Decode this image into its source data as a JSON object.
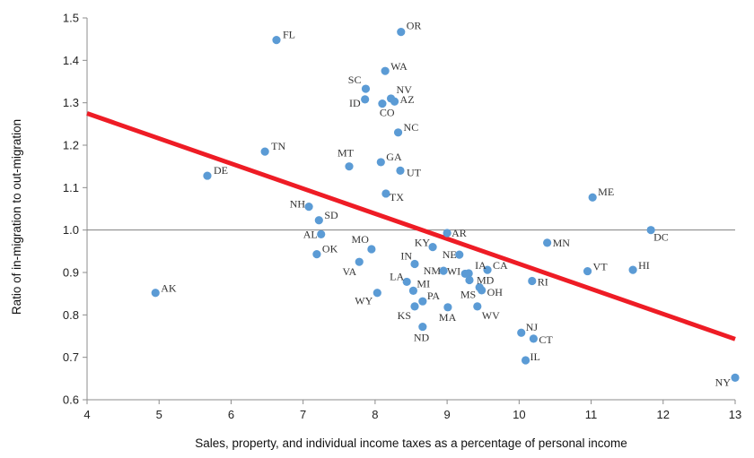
{
  "chart_data": {
    "type": "scatter",
    "xlabel": "Sales, property, and individual income taxes as a percentage of personal income",
    "ylabel": "Ratio of in-migration to out-migration",
    "xlim": [
      4,
      13
    ],
    "ylim": [
      0.6,
      1.5
    ],
    "x_ticks": [
      "4",
      "5",
      "6",
      "7",
      "8",
      "9",
      "10",
      "11",
      "12",
      "13"
    ],
    "y_ticks": [
      "0.6",
      "0.7",
      "0.8",
      "0.9",
      "1.0",
      "1.1",
      "1.2",
      "1.3",
      "1.4",
      "1.5"
    ],
    "reference_line_y": 1.0,
    "trendline": {
      "x": [
        4,
        13
      ],
      "y": [
        1.275,
        0.743
      ],
      "color": "#ee1c25"
    },
    "point_color": "#5b9bd5",
    "points": [
      {
        "label": "FL",
        "x": 6.63,
        "y": 1.448
      },
      {
        "label": "OR",
        "x": 8.36,
        "y": 1.467
      },
      {
        "label": "WA",
        "x": 8.14,
        "y": 1.375
      },
      {
        "label": "SC",
        "x": 7.87,
        "y": 1.333
      },
      {
        "label": "NV",
        "x": 8.22,
        "y": 1.31
      },
      {
        "label": "ID",
        "x": 7.86,
        "y": 1.308
      },
      {
        "label": "AZ",
        "x": 8.27,
        "y": 1.303
      },
      {
        "label": "CO",
        "x": 8.1,
        "y": 1.298
      },
      {
        "label": "NC",
        "x": 8.32,
        "y": 1.23
      },
      {
        "label": "TN",
        "x": 6.47,
        "y": 1.185
      },
      {
        "label": "MT",
        "x": 7.64,
        "y": 1.15
      },
      {
        "label": "GA",
        "x": 8.08,
        "y": 1.16
      },
      {
        "label": "UT",
        "x": 8.35,
        "y": 1.14
      },
      {
        "label": "DE",
        "x": 5.67,
        "y": 1.128
      },
      {
        "label": "TX",
        "x": 8.15,
        "y": 1.086
      },
      {
        "label": "NH",
        "x": 7.08,
        "y": 1.055
      },
      {
        "label": "SD",
        "x": 7.22,
        "y": 1.023
      },
      {
        "label": "ME",
        "x": 11.02,
        "y": 1.077
      },
      {
        "label": "DC",
        "x": 11.83,
        "y": 1.0
      },
      {
        "label": "AL",
        "x": 7.25,
        "y": 0.99
      },
      {
        "label": "AR",
        "x": 9.0,
        "y": 0.993
      },
      {
        "label": "KY",
        "x": 8.8,
        "y": 0.96
      },
      {
        "label": "MO",
        "x": 7.95,
        "y": 0.955
      },
      {
        "label": "MN",
        "x": 10.39,
        "y": 0.97
      },
      {
        "label": "NE",
        "x": 9.17,
        "y": 0.942
      },
      {
        "label": "OK",
        "x": 7.19,
        "y": 0.943
      },
      {
        "label": "IN",
        "x": 8.55,
        "y": 0.92
      },
      {
        "label": "VA",
        "x": 7.78,
        "y": 0.925
      },
      {
        "label": "IA",
        "x": 9.3,
        "y": 0.898
      },
      {
        "label": "WI",
        "x": 9.25,
        "y": 0.897
      },
      {
        "label": "CA",
        "x": 9.56,
        "y": 0.906
      },
      {
        "label": "NM",
        "x": 8.95,
        "y": 0.904
      },
      {
        "label": "VT",
        "x": 10.95,
        "y": 0.903
      },
      {
        "label": "HI",
        "x": 11.58,
        "y": 0.906
      },
      {
        "label": "LA",
        "x": 8.44,
        "y": 0.878
      },
      {
        "label": "MD",
        "x": 9.31,
        "y": 0.882
      },
      {
        "label": "RI",
        "x": 10.18,
        "y": 0.88
      },
      {
        "label": "MI",
        "x": 8.53,
        "y": 0.857
      },
      {
        "label": "MS",
        "x": 9.45,
        "y": 0.865
      },
      {
        "label": "OH",
        "x": 9.48,
        "y": 0.858
      },
      {
        "label": "WY",
        "x": 8.03,
        "y": 0.852
      },
      {
        "label": "AK",
        "x": 4.95,
        "y": 0.852
      },
      {
        "label": "PA",
        "x": 8.66,
        "y": 0.832
      },
      {
        "label": "KS",
        "x": 8.55,
        "y": 0.82
      },
      {
        "label": "MA",
        "x": 9.01,
        "y": 0.818
      },
      {
        "label": "WV",
        "x": 9.42,
        "y": 0.82
      },
      {
        "label": "ND",
        "x": 8.66,
        "y": 0.772
      },
      {
        "label": "NJ",
        "x": 10.03,
        "y": 0.758
      },
      {
        "label": "CT",
        "x": 10.2,
        "y": 0.744
      },
      {
        "label": "IL",
        "x": 10.09,
        "y": 0.693
      },
      {
        "label": "NY",
        "x": 13.0,
        "y": 0.652
      }
    ]
  }
}
